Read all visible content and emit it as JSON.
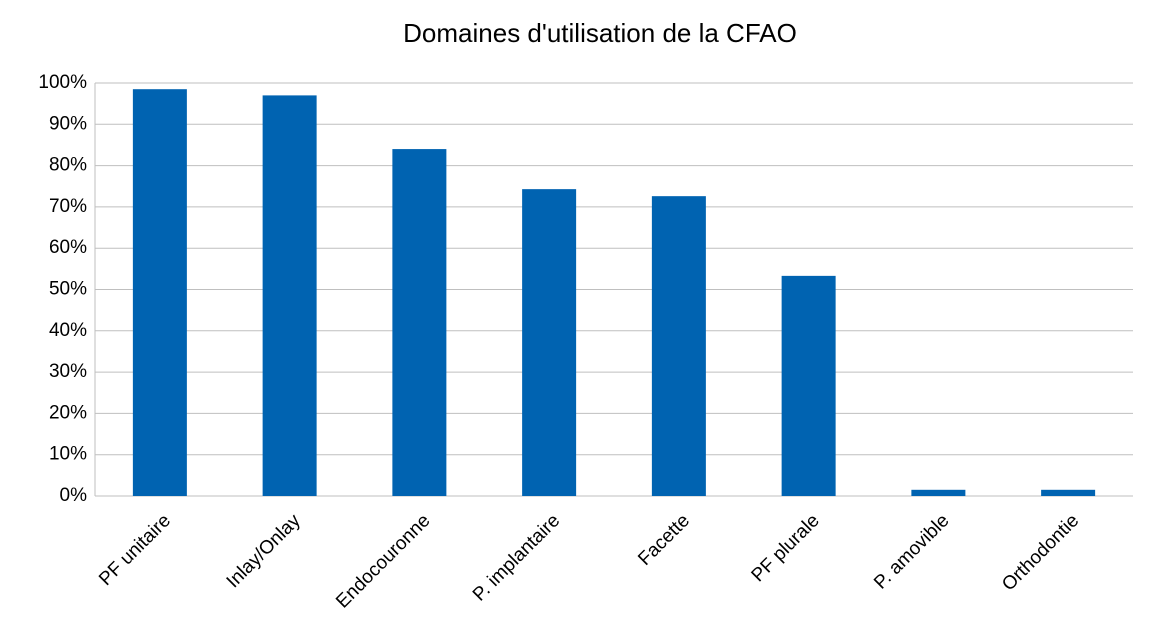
{
  "chart_data": {
    "type": "bar",
    "title": "Domaines d'utilisation de la CFAO",
    "categories": [
      "PF unitaire",
      "Inlay/Onlay",
      "Endocouronne",
      "P. implantaire",
      "Facette",
      "PF plurale",
      "P. amovible",
      "Orthodontie"
    ],
    "values": [
      98.5,
      97,
      84,
      74.3,
      72.6,
      53.3,
      1.5,
      1.5
    ],
    "color": "#0063b1",
    "ylim": [
      0,
      100
    ],
    "yticks": [
      {
        "value": 0,
        "label": "0%"
      },
      {
        "value": 10,
        "label": "10%"
      },
      {
        "value": 20,
        "label": "20%"
      },
      {
        "value": 30,
        "label": "30%"
      },
      {
        "value": 40,
        "label": "40%"
      },
      {
        "value": 50,
        "label": "50%"
      },
      {
        "value": 60,
        "label": "60%"
      },
      {
        "value": 70,
        "label": "70%"
      },
      {
        "value": 80,
        "label": "80%"
      },
      {
        "value": 90,
        "label": "90%"
      },
      {
        "value": 100,
        "label": "100%"
      }
    ],
    "grid": true
  }
}
